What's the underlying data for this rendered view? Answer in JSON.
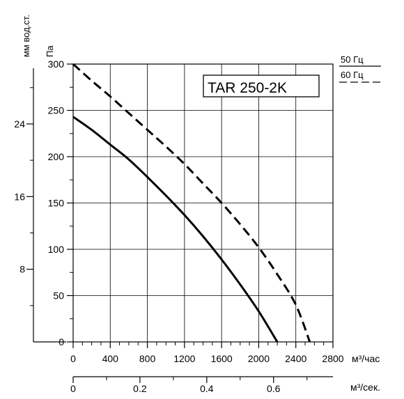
{
  "chart_data": {
    "type": "line",
    "title": "TAR 250-2K",
    "x_primary": {
      "label": "м³/час",
      "ticks": [
        0,
        400,
        800,
        1200,
        1600,
        2000,
        2400,
        2800
      ],
      "range": [
        0,
        2800
      ]
    },
    "x_secondary": {
      "label": "м³/сек.",
      "ticks": [
        "0",
        "0.2",
        "0.4",
        "0.6"
      ],
      "tick_values": [
        0,
        0.2,
        0.4,
        0.6
      ]
    },
    "y_primary": {
      "label": "Па",
      "ticks": [
        0,
        50,
        100,
        150,
        200,
        250,
        300
      ],
      "range": [
        0,
        300
      ]
    },
    "y_secondary": {
      "label": "мм вод.ст.",
      "ticks": [
        8,
        16,
        24
      ]
    },
    "legend": [
      {
        "label": "50 Гц",
        "style": "solid"
      },
      {
        "label": "60 Гц",
        "style": "dashed"
      }
    ],
    "series": [
      {
        "name": "50 Гц",
        "style": "solid",
        "x": [
          0,
          200,
          400,
          600,
          800,
          1000,
          1200,
          1400,
          1600,
          1800,
          2000,
          2200
        ],
        "y": [
          243,
          229,
          213,
          197,
          178,
          158,
          137,
          114,
          89,
          62,
          33,
          0
        ]
      },
      {
        "name": "60 Гц",
        "style": "dashed",
        "x": [
          0,
          200,
          400,
          600,
          800,
          1000,
          1200,
          1400,
          1600,
          1800,
          2000,
          2200,
          2400,
          2550
        ],
        "y": [
          300,
          282,
          265,
          247,
          229,
          211,
          192,
          171,
          150,
          127,
          102,
          73,
          40,
          0
        ]
      }
    ],
    "grid": true
  }
}
